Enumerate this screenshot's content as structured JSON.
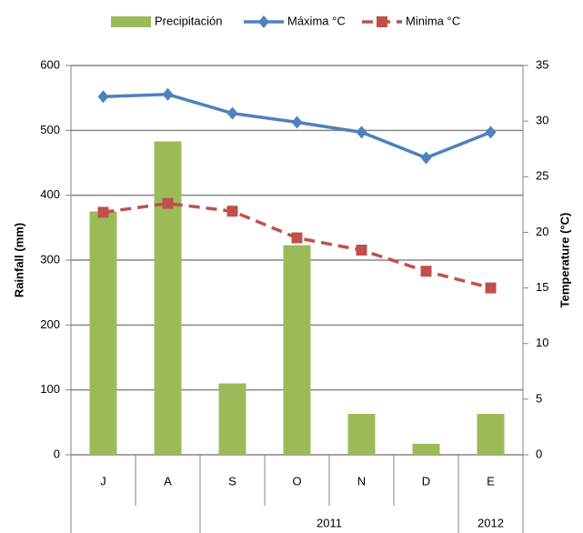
{
  "chart_data": {
    "type": "bar_line",
    "categories": [
      "J",
      "A",
      "S",
      "O",
      "N",
      "D",
      "E"
    ],
    "years": [
      null,
      null,
      "2011",
      "2011",
      "2011",
      "2011",
      "2012"
    ],
    "ylabel": "Rainfall (mm)",
    "y2label": "Temperature (°C)",
    "ylim": [
      0,
      600
    ],
    "yticks": [
      0,
      100,
      200,
      300,
      400,
      500,
      600
    ],
    "y2lim": [
      0,
      35
    ],
    "y2ticks": [
      0,
      5,
      10,
      15,
      20,
      25,
      30,
      35
    ],
    "grid": true,
    "legend": "top",
    "series": [
      {
        "name": "Precipitación",
        "type": "bar",
        "color": "#9bbb59",
        "values": [
          375,
          483,
          110,
          323,
          63,
          17,
          63
        ]
      },
      {
        "name": "Máxima °C",
        "type": "line",
        "axis": "y2",
        "color": "#4f81bd",
        "marker": "diamond",
        "dash": false,
        "values": [
          32.2,
          32.4,
          30.7,
          29.9,
          29.0,
          26.7,
          29.0
        ]
      },
      {
        "name": "Minima °C",
        "type": "line",
        "axis": "y2",
        "color": "#c0504d",
        "marker": "square",
        "dash": true,
        "values": [
          21.8,
          22.6,
          21.9,
          19.5,
          18.4,
          16.5,
          15.0
        ]
      }
    ]
  }
}
